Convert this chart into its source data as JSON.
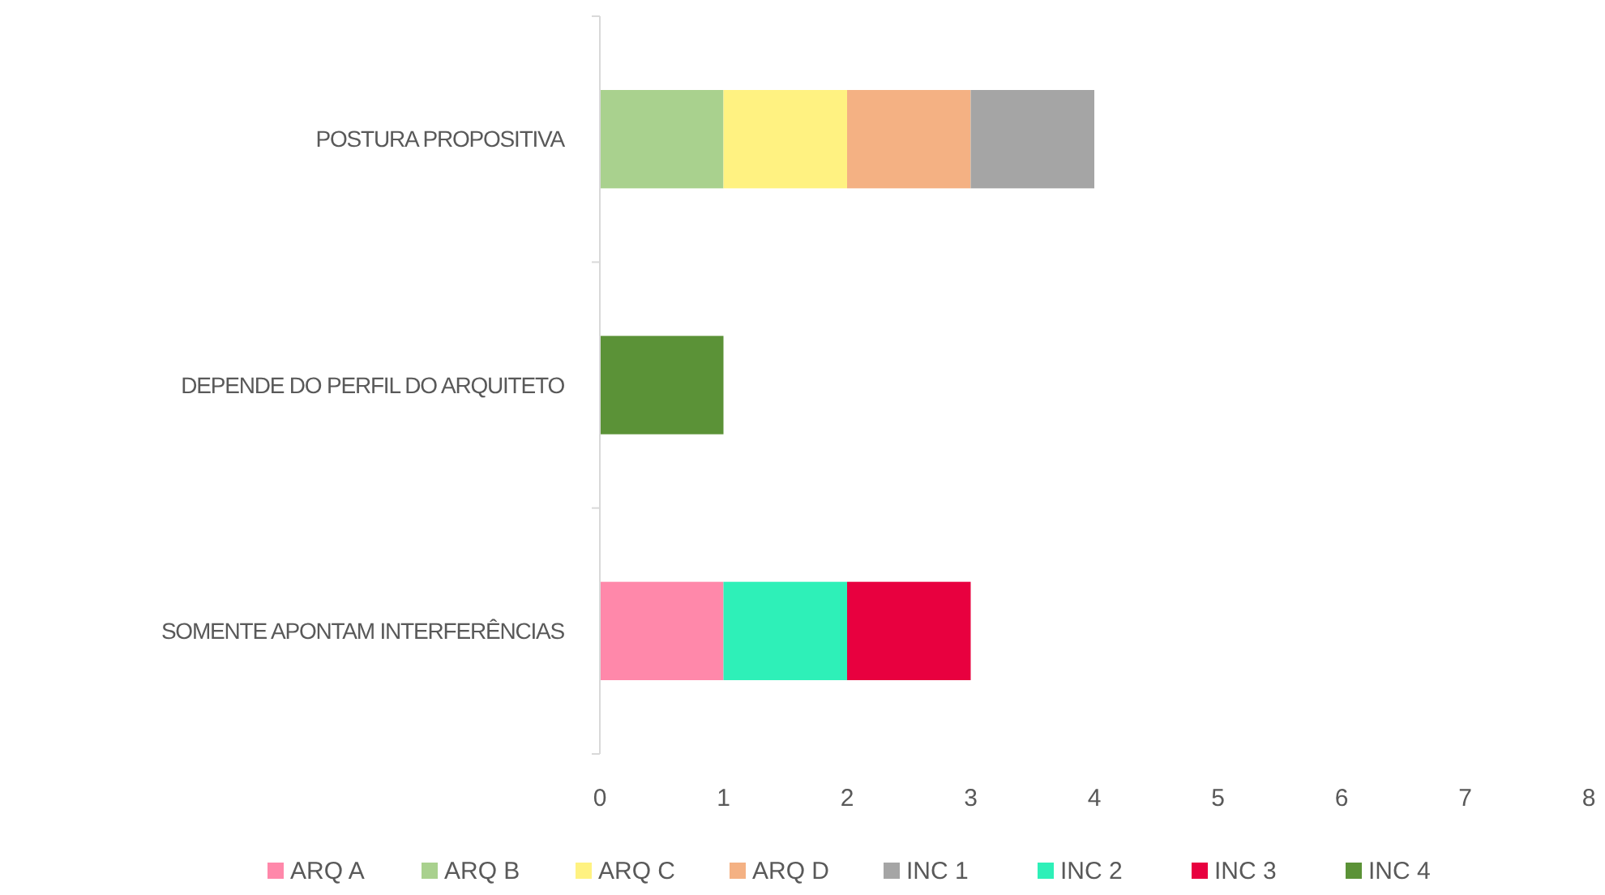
{
  "chart_data": {
    "type": "bar",
    "orientation": "horizontal",
    "stacked": true,
    "categories": [
      "POSTURA PROPOSITIVA",
      "DEPENDE DO PERFIL DO ARQUITETO",
      "SOMENTE APONTAM INTERFERÊNCIAS"
    ],
    "series": [
      {
        "name": "ARQ A",
        "color": "#ff88aa",
        "values": [
          null,
          null,
          1
        ]
      },
      {
        "name": "ARQ B",
        "color": "#a9d18e",
        "values": [
          1,
          null,
          null
        ]
      },
      {
        "name": "ARQ C",
        "color": "#fff281",
        "values": [
          1,
          null,
          null
        ]
      },
      {
        "name": "ARQ D",
        "color": "#f4b183",
        "values": [
          1,
          null,
          null
        ]
      },
      {
        "name": "INC 1",
        "color": "#a5a5a5",
        "values": [
          1,
          null,
          null
        ]
      },
      {
        "name": "INC 2",
        "color": "#2ef0b8",
        "values": [
          null,
          null,
          1
        ]
      },
      {
        "name": "INC 3",
        "color": "#e8003f",
        "values": [
          null,
          null,
          1
        ]
      },
      {
        "name": "INC 4",
        "color": "#5b9237",
        "values": [
          null,
          1,
          null
        ]
      }
    ],
    "xlim": [
      0,
      8
    ],
    "xticks": [
      0,
      1,
      2,
      3,
      4,
      5,
      6,
      7,
      8
    ],
    "grid": false,
    "legend": "bottom"
  }
}
